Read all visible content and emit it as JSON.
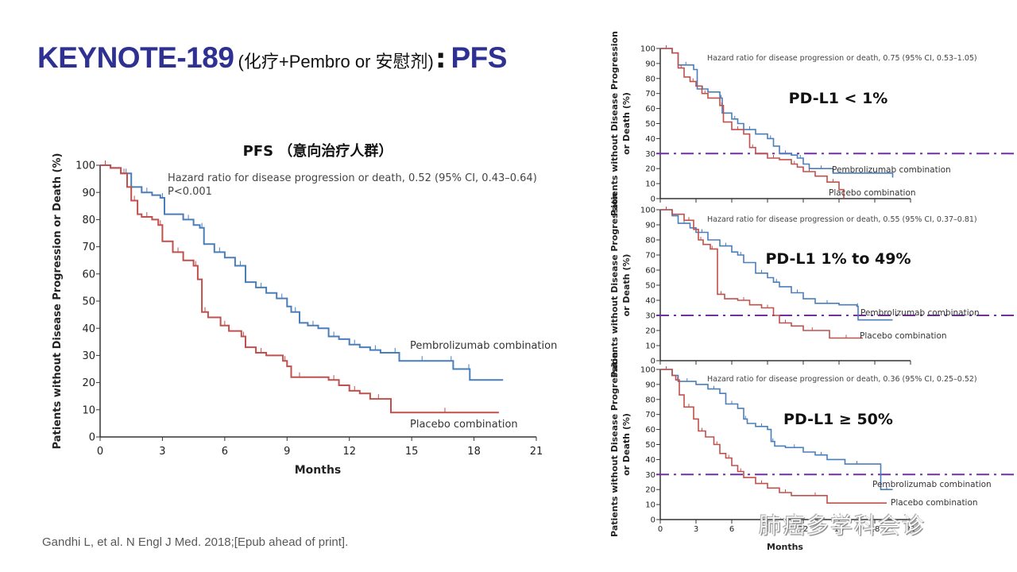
{
  "slide": {
    "title_main": "KEYNOTE-189",
    "title_paren": "(化疗+Pembro or 安慰剂)",
    "title_colon": ":",
    "title_suffix": "PFS",
    "citation": "Gandhi L, et al. N Engl J Med. 2018;[Epub ahead of print].",
    "watermark": "肺癌多学科会诊",
    "colors": {
      "title": "#2e3192",
      "pembrolizumab": "#4a7ebb",
      "placebo": "#c0504d",
      "reference_line": "#7030a0",
      "axis": "#333333"
    }
  },
  "chart_data": [
    {
      "type": "line",
      "title": "PFS （意向治疗人群）",
      "subtitle": "Hazard ratio for disease progression or death, 0.52 (95% CI, 0.43–0.64)",
      "annotation": "P<0.001",
      "xlabel": "Months",
      "ylabel": "Patients without Disease Progression or Death (%)",
      "xlim": [
        0,
        21
      ],
      "ylim": [
        0,
        100
      ],
      "xticks": [
        0,
        3,
        6,
        9,
        12,
        15,
        18,
        21
      ],
      "yticks": [
        0,
        10,
        20,
        30,
        40,
        50,
        60,
        70,
        80,
        90,
        100
      ],
      "grid": false,
      "series": [
        {
          "name": "Pembrolizumab combination",
          "x": [
            0,
            0.5,
            1,
            1.5,
            2,
            2.5,
            2.9,
            3.1,
            4,
            4.5,
            4.8,
            5.0,
            5.5,
            6,
            6.5,
            7,
            7.5,
            8,
            8.5,
            9,
            9.2,
            9.6,
            10,
            10.5,
            11,
            11.5,
            12,
            12.5,
            13,
            13.5,
            14,
            14.4,
            15,
            16,
            16.8,
            17,
            17.7,
            17.8,
            19.4
          ],
          "y": [
            100,
            99,
            97,
            92,
            90,
            89,
            88,
            82,
            80,
            78,
            77,
            71,
            68,
            66,
            63,
            57,
            55,
            53,
            51,
            48,
            46,
            42,
            41,
            40,
            37,
            36,
            34,
            33,
            32,
            31,
            31,
            28,
            28,
            28,
            28,
            25,
            25,
            21,
            21
          ]
        },
        {
          "name": "Placebo combination",
          "x": [
            0,
            0.5,
            1,
            1.3,
            1.5,
            1.8,
            2,
            2.5,
            2.8,
            3,
            3.5,
            4,
            4.5,
            4.7,
            4.9,
            5.2,
            5.8,
            6.2,
            6.8,
            7.0,
            7.5,
            8,
            8.8,
            9,
            9.2,
            10,
            11,
            11.5,
            12,
            12.5,
            13,
            13.8,
            14,
            19.2
          ],
          "y": [
            100,
            99,
            97,
            92,
            87,
            82,
            81,
            80,
            78,
            72,
            68,
            65,
            63,
            58,
            46,
            44,
            41,
            39,
            37,
            33,
            31,
            30,
            28,
            26,
            22,
            22,
            21,
            19,
            17,
            16,
            14,
            14,
            9,
            9
          ]
        }
      ]
    },
    {
      "type": "line",
      "title": "PD-L1 < 1%",
      "subtitle": "Hazard ratio for disease progression or death, 0.75 (95% CI, 0.53–1.05)",
      "xlabel": "",
      "ylabel": "Patients without Disease Progression or Death (%)",
      "xlim": [
        0,
        21
      ],
      "ylim": [
        0,
        100
      ],
      "yticks": [
        0,
        10,
        20,
        30,
        40,
        50,
        60,
        70,
        80,
        90,
        100
      ],
      "reference_line": 30,
      "series": [
        {
          "name": "Pembrolizumab combination",
          "x": [
            0,
            1,
            1.5,
            2.8,
            3.1,
            4,
            5,
            5.2,
            6,
            6.5,
            7,
            8,
            9,
            9.5,
            10,
            11,
            11.5,
            12,
            12.5,
            14.5,
            19.5
          ],
          "y": [
            100,
            97,
            89,
            86,
            73,
            71,
            67,
            57,
            53,
            50,
            46,
            43,
            40,
            35,
            30,
            29,
            27,
            23,
            20,
            17,
            14
          ]
        },
        {
          "name": "Placebo combination",
          "x": [
            0,
            1,
            1.5,
            2,
            2.5,
            3,
            3.5,
            4,
            5,
            5.3,
            6,
            7,
            7.5,
            8,
            9,
            10,
            11,
            11.5,
            12,
            13,
            14,
            15,
            15.4
          ],
          "y": [
            100,
            97,
            87,
            81,
            78,
            75,
            70,
            67,
            62,
            51,
            46,
            43,
            34,
            30,
            27,
            26,
            23,
            21,
            18,
            15,
            11,
            6,
            0
          ]
        }
      ]
    },
    {
      "type": "line",
      "title": "PD-L1 1% to 49%",
      "subtitle": "Hazard ratio for disease progression or death, 0.55 (95% CI, 0.37–0.81)",
      "xlabel": "",
      "ylabel": "Patients without Disease Progression or Death (%)",
      "xlim": [
        0,
        21
      ],
      "ylim": [
        0,
        100
      ],
      "yticks": [
        0,
        10,
        20,
        30,
        40,
        50,
        60,
        70,
        80,
        90,
        100
      ],
      "reference_line": 30,
      "series": [
        {
          "name": "Pembrolizumab combination",
          "x": [
            0,
            1,
            1.5,
            2.5,
            3,
            4,
            5,
            6,
            6.5,
            7,
            8,
            9,
            9.5,
            10,
            11,
            12,
            13,
            15,
            16.5,
            16.6,
            19.5
          ],
          "y": [
            100,
            96,
            91,
            88,
            85,
            80,
            76,
            72,
            70,
            65,
            58,
            55,
            52,
            49,
            45,
            41,
            38,
            37,
            36,
            27,
            27
          ]
        },
        {
          "name": "Placebo combination",
          "x": [
            0,
            1,
            2,
            2.8,
            3.2,
            3.6,
            4.2,
            4.5,
            4.8,
            5.4,
            6.5,
            7.5,
            8.5,
            9.5,
            10,
            11,
            12,
            13.5,
            14.2,
            17
          ],
          "y": [
            100,
            97,
            93,
            87,
            80,
            77,
            74,
            74,
            44,
            41,
            40,
            37,
            35,
            30,
            25,
            23,
            20,
            20,
            15,
            15
          ]
        }
      ]
    },
    {
      "type": "line",
      "title": "PD-L1 ≥ 50%",
      "subtitle": "Hazard ratio for disease progression or death, 0.36 (95% CI, 0.25–0.52)",
      "xlabel": "Months",
      "ylabel": "Patients without Disease Progression or Death (%)",
      "xlim": [
        0,
        21
      ],
      "ylim": [
        0,
        100
      ],
      "xticks": [
        0,
        3,
        6,
        9,
        12,
        15,
        18,
        21
      ],
      "yticks": [
        0,
        10,
        20,
        30,
        40,
        50,
        60,
        70,
        80,
        90,
        100
      ],
      "reference_line": 30,
      "series": [
        {
          "name": "Pembrolizumab combination",
          "x": [
            0,
            1,
            1.5,
            3,
            4,
            5,
            5.5,
            6.5,
            7,
            7.3,
            8,
            9,
            9.3,
            9.6,
            10.5,
            12,
            13,
            14,
            15.5,
            17.5,
            18.5,
            19.5
          ],
          "y": [
            100,
            96,
            92,
            90,
            87,
            84,
            77,
            74,
            67,
            64,
            62,
            60,
            52,
            49,
            48,
            45,
            43,
            40,
            37,
            37,
            20,
            20
          ]
        },
        {
          "name": "Placebo combination",
          "x": [
            0,
            1,
            1.3,
            1.6,
            2,
            2.8,
            3.2,
            3.8,
            4.5,
            5,
            5.5,
            6,
            6.5,
            7,
            8,
            9,
            10,
            11,
            12,
            14,
            19
          ],
          "y": [
            100,
            96,
            93,
            83,
            75,
            67,
            59,
            55,
            50,
            44,
            41,
            36,
            32,
            28,
            24,
            21,
            18,
            16,
            16,
            11,
            11
          ]
        }
      ]
    }
  ]
}
